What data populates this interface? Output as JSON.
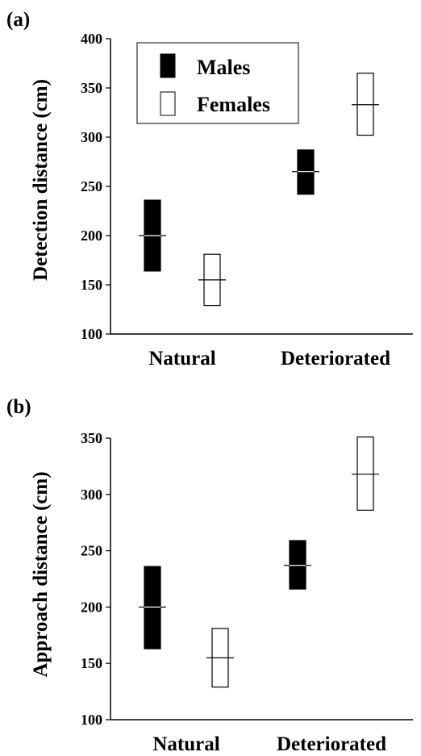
{
  "chart_data": [
    {
      "type": "range",
      "panel_label": "(a)",
      "ylabel": "Detection distance (cm)",
      "xlabel": "",
      "ylim": [
        100,
        400
      ],
      "yticks": [
        100,
        150,
        200,
        250,
        300,
        350,
        400
      ],
      "categories": [
        "Natural",
        "Deteriorated"
      ],
      "legend": {
        "placement": "top-left",
        "entries": [
          "Males",
          "Females"
        ]
      },
      "series": [
        {
          "name": "Males",
          "fill": "#000000",
          "values": [
            {
              "category": "Natural",
              "low": 164,
              "mean": 200,
              "high": 236
            },
            {
              "category": "Deteriorated",
              "low": 242,
              "mean": 265,
              "high": 287
            }
          ]
        },
        {
          "name": "Females",
          "fill": "#ffffff",
          "values": [
            {
              "category": "Natural",
              "low": 129,
              "mean": 155,
              "high": 181
            },
            {
              "category": "Deteriorated",
              "low": 302,
              "mean": 333,
              "high": 365
            }
          ]
        }
      ]
    },
    {
      "type": "range",
      "panel_label": "(b)",
      "ylabel": "Approach distance (cm)",
      "xlabel": "",
      "ylim": [
        100,
        350
      ],
      "yticks": [
        100,
        150,
        200,
        250,
        300,
        350
      ],
      "categories": [
        "Natural",
        "Deteriorated"
      ],
      "series": [
        {
          "name": "Males",
          "fill": "#000000",
          "values": [
            {
              "category": "Natural",
              "low": 163,
              "mean": 200,
              "high": 236
            },
            {
              "category": "Deteriorated",
              "low": 216,
              "mean": 237,
              "high": 259
            }
          ]
        },
        {
          "name": "Females",
          "fill": "#ffffff",
          "values": [
            {
              "category": "Natural",
              "low": 129,
              "mean": 155,
              "high": 181
            },
            {
              "category": "Deteriorated",
              "low": 286,
              "mean": 318,
              "high": 351
            }
          ]
        }
      ]
    }
  ]
}
